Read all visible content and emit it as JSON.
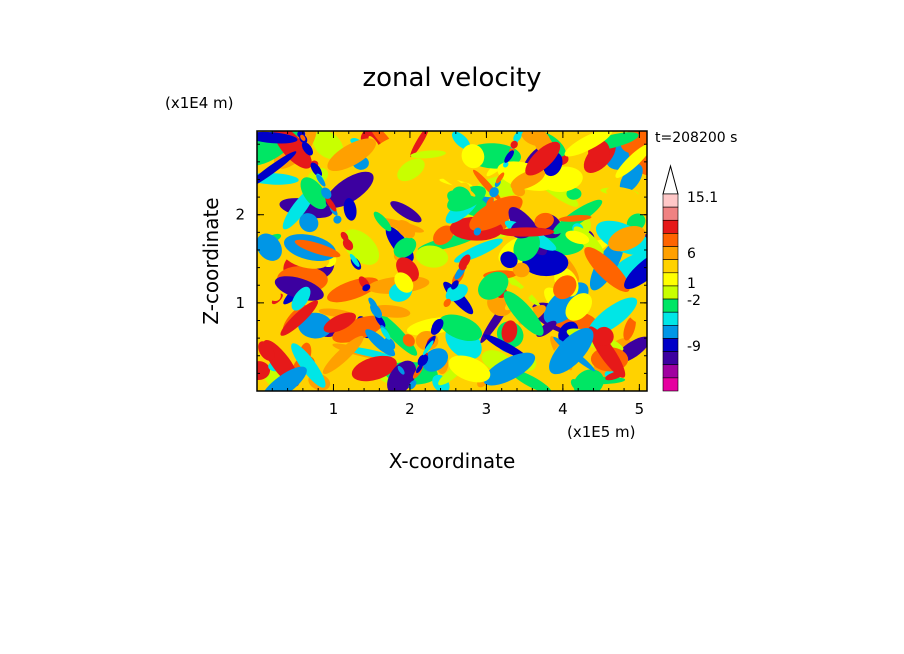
{
  "chart_data": {
    "type": "heatmap",
    "title": "zonal velocity",
    "xlabel": "X-coordinate",
    "ylabel": "Z-coordinate",
    "x_scale_note": "(x1E5 m)",
    "y_scale_note": "(x1E4 m)",
    "time_label": "t=208200 s",
    "xlim": [
      0,
      5.1
    ],
    "ylim": [
      0,
      2.95
    ],
    "x_ticks": [
      "1",
      "2",
      "3",
      "4",
      "5"
    ],
    "y_ticks": [
      "1",
      "2"
    ],
    "colorbar": {
      "labels": [
        "15.1",
        "6",
        "1",
        "-2",
        "-9"
      ],
      "colors": [
        "#ffc8c8",
        "#f08282",
        "#e61919",
        "#ff6400",
        "#ffa000",
        "#ffd200",
        "#ffff00",
        "#c8ff00",
        "#00e664",
        "#00e6e6",
        "#0096e6",
        "#0000c8",
        "#3c00a0",
        "#a000a0",
        "#e600a0"
      ]
    }
  }
}
